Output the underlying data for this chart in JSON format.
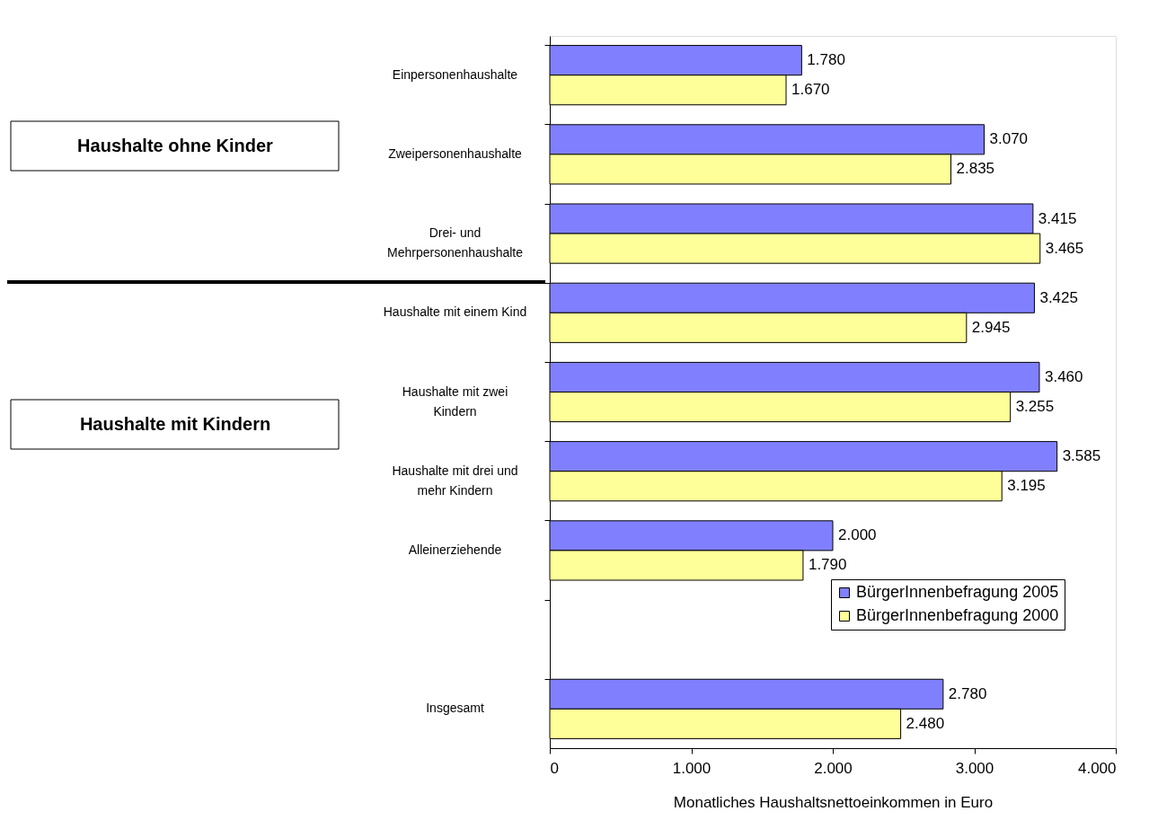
{
  "chart_data": {
    "type": "bar",
    "orientation": "horizontal",
    "categories": [
      "Einpersonenhaushalte",
      "Zweipersonenhaushalte",
      "Drei- und Mehrpersonenhaushalte",
      "Haushalte mit einem Kind",
      "Haushalte mit zwei Kindern",
      "Haushalte mit drei und mehr Kindern",
      "Alleinerziehende",
      null,
      "Insgesamt"
    ],
    "series": [
      {
        "name": "BürgerInnenbefragung 2005",
        "color": "#8080ff",
        "values": [
          1780,
          3070,
          3415,
          3425,
          3460,
          3585,
          2000,
          null,
          2780
        ],
        "value_labels": [
          "1.780",
          "3.070",
          "3.415",
          "3.425",
          "3.460",
          "3.585",
          "2.000",
          null,
          "2.780"
        ]
      },
      {
        "name": "BürgerInnenbefragung 2000",
        "color": "#ffff99",
        "values": [
          1670,
          2835,
          3465,
          2945,
          3255,
          3195,
          1790,
          null,
          2480
        ],
        "value_labels": [
          "1.670",
          "2.835",
          "3.465",
          "2.945",
          "3.255",
          "3.195",
          "1.790",
          null,
          "2.480"
        ]
      }
    ],
    "xlim": [
      0,
      4000
    ],
    "xticks": [
      {
        "value": 0,
        "label": "0"
      },
      {
        "value": 1000,
        "label": "1.000"
      },
      {
        "value": 2000,
        "label": "2.000"
      },
      {
        "value": 3000,
        "label": "3.000"
      },
      {
        "value": 4000,
        "label": "4.000"
      }
    ],
    "xlabel": "Monatliches Haushaltsnettoeinkommen in Euro",
    "annotations": [
      "Haushalte ohne Kinder",
      "Haushalte mit Kindern"
    ],
    "legend": "bottom right",
    "grid": false
  }
}
